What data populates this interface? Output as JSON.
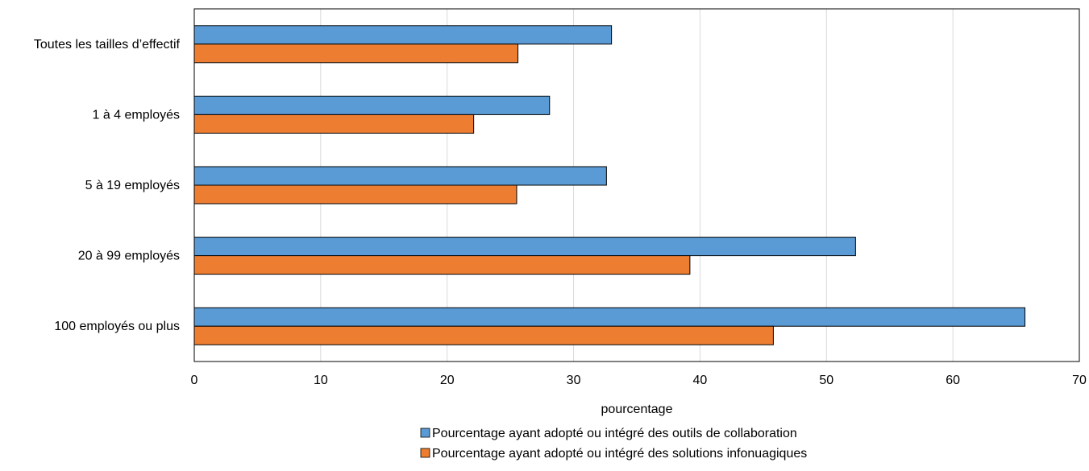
{
  "chart_data": {
    "type": "bar",
    "orientation": "horizontal",
    "categories": [
      "Toutes les tailles d’effectif",
      "1 à 4 employés",
      "5 à 19 employés",
      "20 à 99 employés",
      "100 employés ou plus"
    ],
    "series": [
      {
        "name": "Pourcentage ayant adopté ou intégré des outils de collaboration",
        "color": "#5b9bd5",
        "values": [
          33.0,
          28.1,
          32.6,
          52.3,
          65.7
        ]
      },
      {
        "name": "Pourcentage ayant adopté ou intégré des solutions infonuagiques",
        "color": "#ed7d31",
        "values": [
          25.6,
          22.1,
          25.5,
          39.2,
          45.8
        ]
      }
    ],
    "xlabel": "pourcentage",
    "xlim": [
      0,
      70
    ],
    "xticks": [
      "0",
      "10",
      "20",
      "30",
      "40",
      "50",
      "60",
      "70"
    ],
    "grid": "vertical",
    "legend_position": "bottom"
  }
}
